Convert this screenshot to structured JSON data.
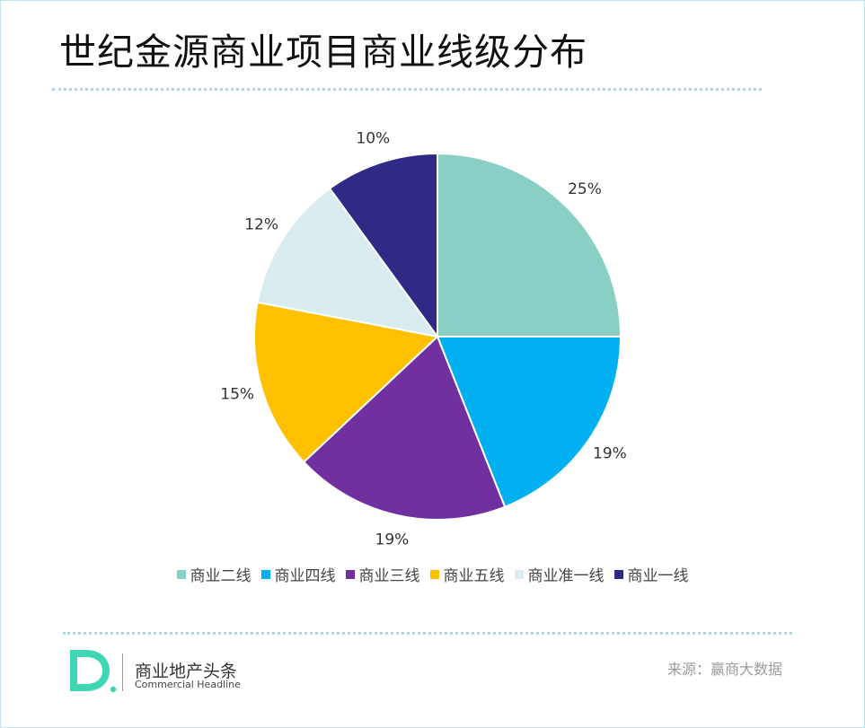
{
  "header": {
    "title": "世纪金源商业项目商业线级分布"
  },
  "chart_data": {
    "type": "pie",
    "title": "世纪金源商业项目商业线级分布",
    "categories": [
      "商业二线",
      "商业四线",
      "商业三线",
      "商业五线",
      "商业准一线",
      "商业一线"
    ],
    "values": [
      25,
      19,
      19,
      15,
      12,
      10
    ],
    "labels": [
      "25%",
      "19%",
      "19%",
      "15%",
      "12%",
      "10%"
    ],
    "colors": [
      "#8acfc3",
      "#00b0f0",
      "#7030a0",
      "#ffc000",
      "#d9ecef",
      "#2e2a85"
    ],
    "legend_position": "bottom",
    "start_angle": "12 o'clock",
    "direction": "clockwise"
  },
  "footer": {
    "brand_cn": "商业地产头条",
    "brand_en": "Commercial Headline",
    "source": "来源：赢商大数据"
  }
}
